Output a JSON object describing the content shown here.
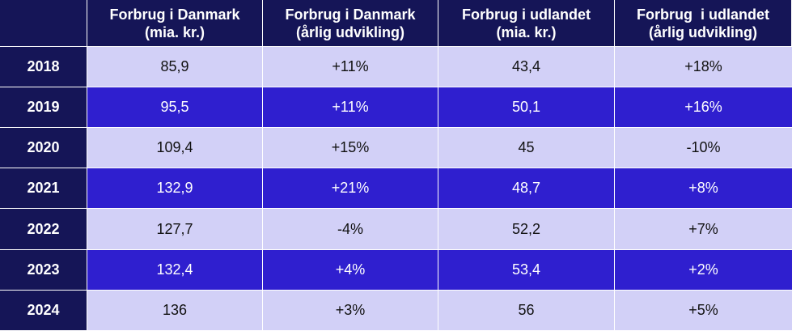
{
  "colors": {
    "header_bg": "#151557",
    "row_light": "#d2d0f7",
    "row_dark": "#2f1fcf",
    "header_text": "#ffffff"
  },
  "chart_data": {
    "type": "table",
    "columns": [
      {
        "line1": "Forbrug i Danmark",
        "line2": "(mia. kr.)"
      },
      {
        "line1": "Forbrug i Danmark",
        "line2": "(årlig udvikling)"
      },
      {
        "line1": "Forbrug i udlandet",
        "line2": "(mia. kr.)"
      },
      {
        "line1": "Forbrug  i udlandet",
        "line2": "(årlig udvikling)"
      }
    ],
    "rows": [
      {
        "year": "2018",
        "values": [
          "85,9",
          "+11%",
          "43,4",
          "+18%"
        ]
      },
      {
        "year": "2019",
        "values": [
          "95,5",
          "+11%",
          "50,1",
          "+16%"
        ]
      },
      {
        "year": "2020",
        "values": [
          "109,4",
          "+15%",
          "45",
          "-10%"
        ]
      },
      {
        "year": "2021",
        "values": [
          "132,9",
          "+21%",
          "48,7",
          "+8%"
        ]
      },
      {
        "year": "2022",
        "values": [
          "127,7",
          "-4%",
          "52,2",
          "+7%"
        ]
      },
      {
        "year": "2023",
        "values": [
          "132,4",
          "+4%",
          "53,4",
          "+2%"
        ]
      },
      {
        "year": "2024",
        "values": [
          "136",
          "+3%",
          "56",
          "+5%"
        ]
      }
    ]
  }
}
